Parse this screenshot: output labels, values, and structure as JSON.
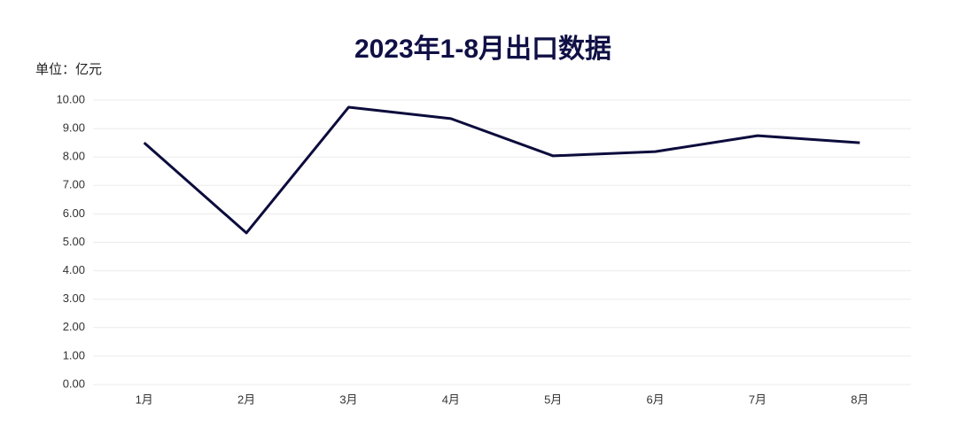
{
  "chart_data": {
    "type": "line",
    "title": "2023年1-8月出口数据",
    "y_unit": "单位：亿元",
    "categories": [
      "1月",
      "2月",
      "3月",
      "4月",
      "5月",
      "6月",
      "7月",
      "8月"
    ],
    "values": [
      8.5,
      5.33,
      9.75,
      9.35,
      8.04,
      8.19,
      8.75,
      8.5
    ],
    "color": "#0c0c3c",
    "ylim": [
      0,
      10
    ],
    "yticks": [
      {
        "value": 0,
        "label": "0.00"
      },
      {
        "value": 1,
        "label": "1.00"
      },
      {
        "value": 2,
        "label": "2.00"
      },
      {
        "value": 3,
        "label": "3.00"
      },
      {
        "value": 4,
        "label": "4.00"
      },
      {
        "value": 5,
        "label": "5.00"
      },
      {
        "value": 6,
        "label": "6.00"
      },
      {
        "value": 7,
        "label": "7.00"
      },
      {
        "value": 8,
        "label": "8.00"
      },
      {
        "value": 9,
        "label": "9.00"
      },
      {
        "value": 10,
        "label": "10.00"
      }
    ],
    "grid": true
  }
}
